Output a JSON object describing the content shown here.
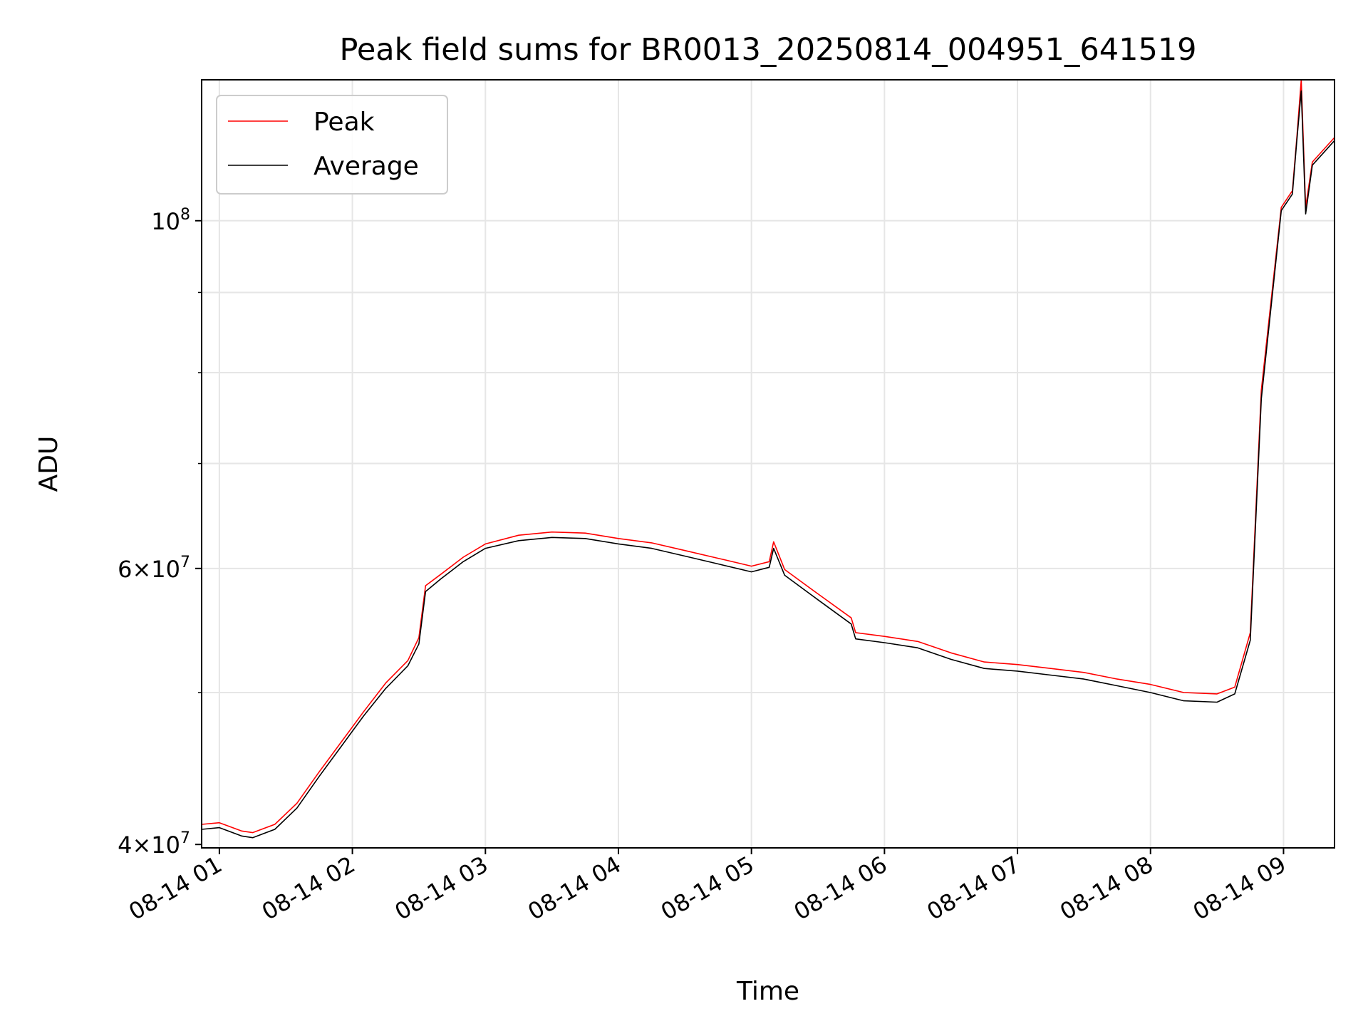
{
  "chart_data": {
    "type": "line",
    "title": "Peak field sums for BR0013_20250814_004951_641519",
    "xlabel": "Time",
    "ylabel": "ADU",
    "y_scale": "log",
    "ylim": [
      39800000,
      123000000
    ],
    "xlim": [
      "2025-08-14T00:52",
      "2025-08-14T09:23"
    ],
    "grid": true,
    "legend_position": "upper left",
    "x_tick_labels": [
      "08-14 01",
      "08-14 02",
      "08-14 03",
      "08-14 04",
      "08-14 05",
      "08-14 06",
      "08-14 07",
      "08-14 08",
      "08-14 09"
    ],
    "y_tick_labels": [
      {
        "value": 40000000,
        "mantissa": "4",
        "exponent": "7"
      },
      {
        "value": 60000000,
        "mantissa": "6",
        "exponent": "7"
      },
      {
        "value": 100000000,
        "mantissa": "10",
        "exponent": "8"
      }
    ],
    "series": [
      {
        "name": "Peak",
        "color": "#ff0000",
        "points": [
          [
            "2025-08-14T00:52",
            41200000
          ],
          [
            "2025-08-14T01:00",
            41300000
          ],
          [
            "2025-08-14T01:10",
            40800000
          ],
          [
            "2025-08-14T01:15",
            40700000
          ],
          [
            "2025-08-14T01:25",
            41200000
          ],
          [
            "2025-08-14T01:35",
            42500000
          ],
          [
            "2025-08-14T01:45",
            44500000
          ],
          [
            "2025-08-14T01:55",
            46500000
          ],
          [
            "2025-08-14T02:05",
            48600000
          ],
          [
            "2025-08-14T02:15",
            50700000
          ],
          [
            "2025-08-14T02:25",
            52400000
          ],
          [
            "2025-08-14T02:30",
            54200000
          ],
          [
            "2025-08-14T02:33",
            58500000
          ],
          [
            "2025-08-14T02:40",
            59500000
          ],
          [
            "2025-08-14T02:50",
            61000000
          ],
          [
            "2025-08-14T03:00",
            62200000
          ],
          [
            "2025-08-14T03:15",
            63000000
          ],
          [
            "2025-08-14T03:30",
            63300000
          ],
          [
            "2025-08-14T03:45",
            63200000
          ],
          [
            "2025-08-14T04:00",
            62700000
          ],
          [
            "2025-08-14T04:15",
            62300000
          ],
          [
            "2025-08-14T04:30",
            61600000
          ],
          [
            "2025-08-14T04:45",
            60900000
          ],
          [
            "2025-08-14T05:00",
            60200000
          ],
          [
            "2025-08-14T05:08",
            60600000
          ],
          [
            "2025-08-14T05:10",
            62400000
          ],
          [
            "2025-08-14T05:15",
            59900000
          ],
          [
            "2025-08-14T05:30",
            57800000
          ],
          [
            "2025-08-14T05:45",
            55800000
          ],
          [
            "2025-08-14T05:47",
            54600000
          ],
          [
            "2025-08-14T06:00",
            54300000
          ],
          [
            "2025-08-14T06:15",
            53900000
          ],
          [
            "2025-08-14T06:30",
            53000000
          ],
          [
            "2025-08-14T06:45",
            52300000
          ],
          [
            "2025-08-14T07:00",
            52100000
          ],
          [
            "2025-08-14T07:15",
            51800000
          ],
          [
            "2025-08-14T07:30",
            51500000
          ],
          [
            "2025-08-14T07:45",
            51000000
          ],
          [
            "2025-08-14T08:00",
            50600000
          ],
          [
            "2025-08-14T08:15",
            50000000
          ],
          [
            "2025-08-14T08:30",
            49900000
          ],
          [
            "2025-08-14T08:38",
            50400000
          ],
          [
            "2025-08-14T08:45",
            54600000
          ],
          [
            "2025-08-14T08:50",
            78000000
          ],
          [
            "2025-08-14T08:59",
            102000000
          ],
          [
            "2025-08-14T09:04",
            104500000
          ],
          [
            "2025-08-14T09:06",
            113000000
          ],
          [
            "2025-08-14T09:08",
            123000000
          ],
          [
            "2025-08-14T09:10",
            102000000
          ],
          [
            "2025-08-14T09:13",
            109000000
          ],
          [
            "2025-08-14T09:23",
            113000000
          ]
        ]
      },
      {
        "name": "Average",
        "color": "#000000",
        "points": [
          [
            "2025-08-14T00:52",
            40900000
          ],
          [
            "2025-08-14T01:00",
            41000000
          ],
          [
            "2025-08-14T01:10",
            40500000
          ],
          [
            "2025-08-14T01:15",
            40400000
          ],
          [
            "2025-08-14T01:25",
            40900000
          ],
          [
            "2025-08-14T01:35",
            42200000
          ],
          [
            "2025-08-14T01:45",
            44200000
          ],
          [
            "2025-08-14T01:55",
            46200000
          ],
          [
            "2025-08-14T02:05",
            48300000
          ],
          [
            "2025-08-14T02:15",
            50300000
          ],
          [
            "2025-08-14T02:25",
            52000000
          ],
          [
            "2025-08-14T02:30",
            53700000
          ],
          [
            "2025-08-14T02:33",
            58000000
          ],
          [
            "2025-08-14T02:40",
            59100000
          ],
          [
            "2025-08-14T02:50",
            60600000
          ],
          [
            "2025-08-14T03:00",
            61800000
          ],
          [
            "2025-08-14T03:15",
            62500000
          ],
          [
            "2025-08-14T03:30",
            62800000
          ],
          [
            "2025-08-14T03:45",
            62700000
          ],
          [
            "2025-08-14T04:00",
            62200000
          ],
          [
            "2025-08-14T04:15",
            61800000
          ],
          [
            "2025-08-14T04:30",
            61100000
          ],
          [
            "2025-08-14T04:45",
            60400000
          ],
          [
            "2025-08-14T05:00",
            59700000
          ],
          [
            "2025-08-14T05:08",
            60100000
          ],
          [
            "2025-08-14T05:10",
            61800000
          ],
          [
            "2025-08-14T05:15",
            59400000
          ],
          [
            "2025-08-14T05:30",
            57300000
          ],
          [
            "2025-08-14T05:45",
            55300000
          ],
          [
            "2025-08-14T05:47",
            54100000
          ],
          [
            "2025-08-14T06:00",
            53800000
          ],
          [
            "2025-08-14T06:15",
            53400000
          ],
          [
            "2025-08-14T06:30",
            52500000
          ],
          [
            "2025-08-14T06:45",
            51800000
          ],
          [
            "2025-08-14T07:00",
            51600000
          ],
          [
            "2025-08-14T07:15",
            51300000
          ],
          [
            "2025-08-14T07:30",
            51000000
          ],
          [
            "2025-08-14T07:45",
            50500000
          ],
          [
            "2025-08-14T08:00",
            50000000
          ],
          [
            "2025-08-14T08:15",
            49400000
          ],
          [
            "2025-08-14T08:30",
            49300000
          ],
          [
            "2025-08-14T08:38",
            49900000
          ],
          [
            "2025-08-14T08:45",
            54000000
          ],
          [
            "2025-08-14T08:50",
            77000000
          ],
          [
            "2025-08-14T08:59",
            101500000
          ],
          [
            "2025-08-14T09:04",
            104000000
          ],
          [
            "2025-08-14T09:06",
            112500000
          ],
          [
            "2025-08-14T09:08",
            121000000
          ],
          [
            "2025-08-14T09:10",
            101000000
          ],
          [
            "2025-08-14T09:13",
            108500000
          ],
          [
            "2025-08-14T09:23",
            112500000
          ]
        ]
      }
    ]
  }
}
